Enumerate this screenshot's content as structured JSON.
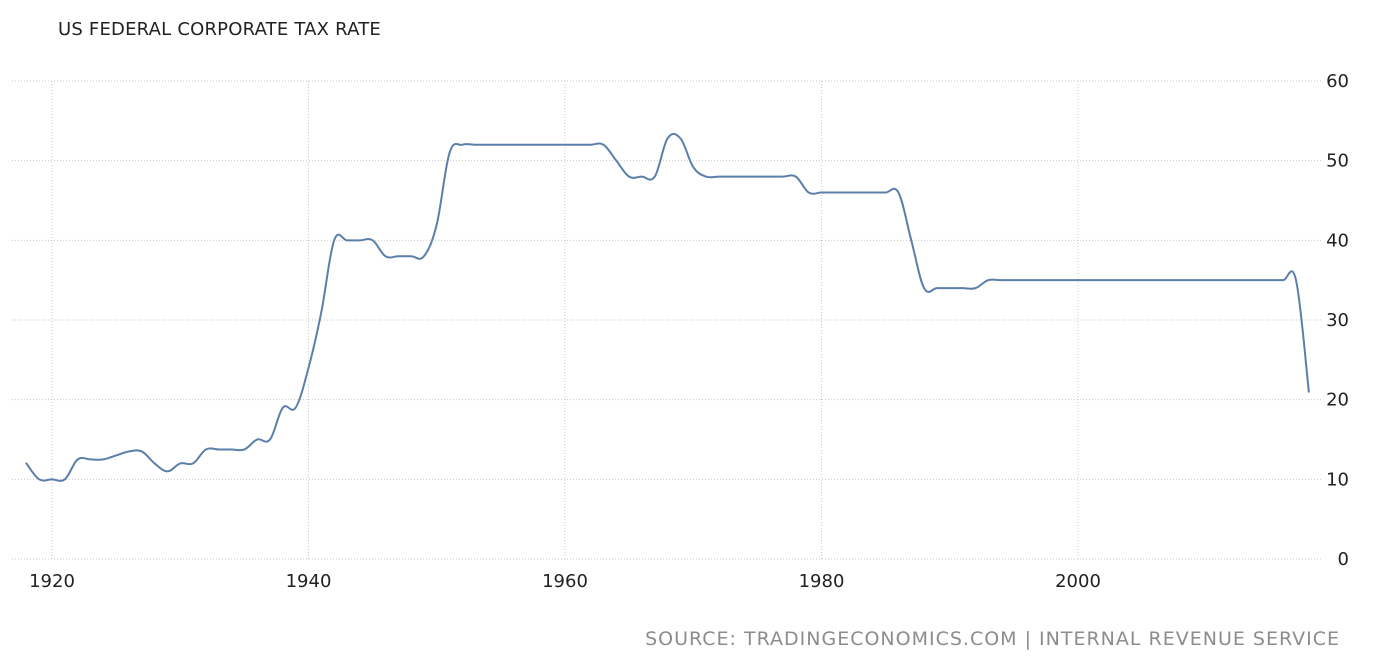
{
  "chart_data": {
    "type": "line",
    "title": "US FEDERAL CORPORATE TAX RATE",
    "xlabel": "",
    "ylabel": "",
    "xlim": [
      1917.8,
      2018.5
    ],
    "ylim": [
      0,
      60
    ],
    "x_ticks": [
      "1920",
      "1940",
      "1960",
      "1980",
      "2000"
    ],
    "y_ticks": [
      "0",
      "10",
      "20",
      "30",
      "40",
      "50",
      "60"
    ],
    "grid": true,
    "legend": "none",
    "series": [
      {
        "color": "#5b7fa9",
        "points": [
          [
            1918,
            12
          ],
          [
            1919,
            10
          ],
          [
            1920,
            10
          ],
          [
            1921,
            10
          ],
          [
            1922,
            12.5
          ],
          [
            1923,
            12.5
          ],
          [
            1924,
            12.5
          ],
          [
            1925,
            13
          ],
          [
            1926,
            13.5
          ],
          [
            1927,
            13.5
          ],
          [
            1928,
            12
          ],
          [
            1929,
            11
          ],
          [
            1930,
            12
          ],
          [
            1931,
            12
          ],
          [
            1932,
            13.75
          ],
          [
            1933,
            13.75
          ],
          [
            1934,
            13.75
          ],
          [
            1935,
            13.75
          ],
          [
            1936,
            15
          ],
          [
            1937,
            15
          ],
          [
            1938,
            19
          ],
          [
            1939,
            19
          ],
          [
            1940,
            24
          ],
          [
            1941,
            31
          ],
          [
            1942,
            40
          ],
          [
            1943,
            40
          ],
          [
            1944,
            40
          ],
          [
            1945,
            40
          ],
          [
            1946,
            38
          ],
          [
            1947,
            38
          ],
          [
            1948,
            38
          ],
          [
            1949,
            38
          ],
          [
            1950,
            42
          ],
          [
            1951,
            51
          ],
          [
            1952,
            52
          ],
          [
            1953,
            52
          ],
          [
            1954,
            52
          ],
          [
            1955,
            52
          ],
          [
            1956,
            52
          ],
          [
            1957,
            52
          ],
          [
            1958,
            52
          ],
          [
            1959,
            52
          ],
          [
            1960,
            52
          ],
          [
            1961,
            52
          ],
          [
            1962,
            52
          ],
          [
            1963,
            52
          ],
          [
            1964,
            50
          ],
          [
            1965,
            48
          ],
          [
            1966,
            48
          ],
          [
            1967,
            48
          ],
          [
            1968,
            52.8
          ],
          [
            1969,
            52.8
          ],
          [
            1970,
            49.2
          ],
          [
            1971,
            48
          ],
          [
            1972,
            48
          ],
          [
            1973,
            48
          ],
          [
            1974,
            48
          ],
          [
            1975,
            48
          ],
          [
            1976,
            48
          ],
          [
            1977,
            48
          ],
          [
            1978,
            48
          ],
          [
            1979,
            46
          ],
          [
            1980,
            46
          ],
          [
            1981,
            46
          ],
          [
            1982,
            46
          ],
          [
            1983,
            46
          ],
          [
            1984,
            46
          ],
          [
            1985,
            46
          ],
          [
            1986,
            46
          ],
          [
            1987,
            40
          ],
          [
            1988,
            34
          ],
          [
            1989,
            34
          ],
          [
            1990,
            34
          ],
          [
            1991,
            34
          ],
          [
            1992,
            34
          ],
          [
            1993,
            35
          ],
          [
            1994,
            35
          ],
          [
            1995,
            35
          ],
          [
            1996,
            35
          ],
          [
            1997,
            35
          ],
          [
            1998,
            35
          ],
          [
            1999,
            35
          ],
          [
            2000,
            35
          ],
          [
            2001,
            35
          ],
          [
            2002,
            35
          ],
          [
            2003,
            35
          ],
          [
            2004,
            35
          ],
          [
            2005,
            35
          ],
          [
            2006,
            35
          ],
          [
            2007,
            35
          ],
          [
            2008,
            35
          ],
          [
            2009,
            35
          ],
          [
            2010,
            35
          ],
          [
            2011,
            35
          ],
          [
            2012,
            35
          ],
          [
            2013,
            35
          ],
          [
            2014,
            35
          ],
          [
            2015,
            35
          ],
          [
            2016,
            35
          ],
          [
            2017,
            35
          ],
          [
            2018,
            21
          ]
        ]
      }
    ]
  },
  "footer": {
    "source": "SOURCE: TRADINGECONOMICS.COM | INTERNAL REVENUE SERVICE"
  }
}
